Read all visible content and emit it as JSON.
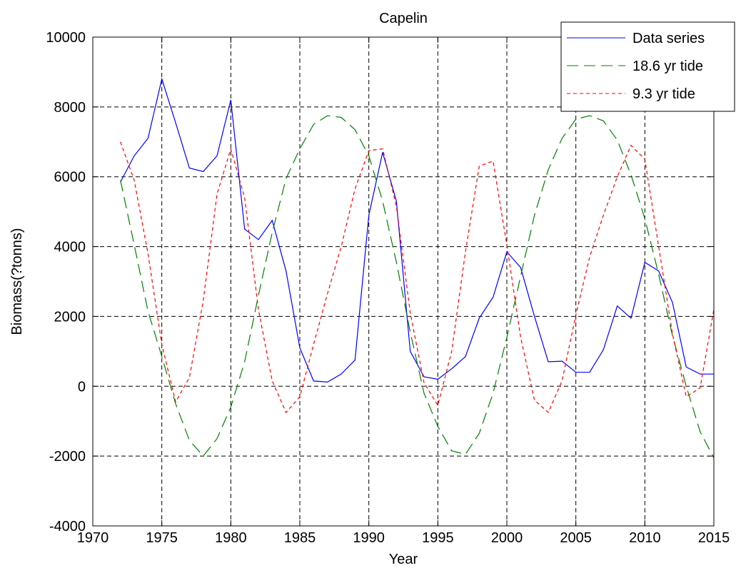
{
  "chart_data": {
    "type": "line",
    "title": "Capelin",
    "xlabel": "Year",
    "ylabel": "Biomass(?tonns)",
    "xlim": [
      1970,
      2015
    ],
    "ylim": [
      -4000,
      10000
    ],
    "xticks": [
      1970,
      1975,
      1980,
      1985,
      1990,
      1995,
      2000,
      2005,
      2010,
      2015
    ],
    "yticks": [
      -4000,
      -2000,
      0,
      2000,
      4000,
      6000,
      8000,
      10000
    ],
    "grid": true,
    "legend_position": "top-right",
    "series": [
      {
        "name": "Data series",
        "color": "#0000ff",
        "dash": "solid",
        "x": [
          1972,
          1973,
          1974,
          1975,
          1976,
          1977,
          1978,
          1979,
          1980,
          1981,
          1982,
          1983,
          1984,
          1985,
          1986,
          1987,
          1988,
          1989,
          1990,
          1991,
          1992,
          1993,
          1994,
          1995,
          1996,
          1997,
          1998,
          1999,
          2000,
          2001,
          2002,
          2003,
          2004,
          2005,
          2006,
          2007,
          2008,
          2009,
          2010,
          2011,
          2012,
          2013,
          2014,
          2015
        ],
        "y": [
          5850,
          6600,
          7100,
          8800,
          7550,
          6250,
          6150,
          6600,
          8200,
          4500,
          4200,
          4750,
          3300,
          1100,
          150,
          120,
          350,
          750,
          4900,
          6700,
          5300,
          1000,
          270,
          200,
          500,
          850,
          1950,
          2550,
          3850,
          3400,
          2000,
          700,
          720,
          400,
          400,
          1050,
          2300,
          1950,
          3550,
          3300,
          2400,
          550,
          350,
          350
        ]
      },
      {
        "name": "18.6 yr tide",
        "color": "#008000",
        "dash": "long",
        "x": [
          1972,
          1973,
          1974,
          1975,
          1976,
          1977,
          1978,
          1979,
          1980,
          1981,
          1982,
          1983,
          1984,
          1985,
          1986,
          1987,
          1988,
          1989,
          1990,
          1991,
          1992,
          1993,
          1994,
          1995,
          1996,
          1997,
          1998,
          1999,
          2000,
          2001,
          2002,
          2003,
          2004,
          2005,
          2006,
          2007,
          2008,
          2009,
          2010,
          2011,
          2012,
          2013,
          2014,
          2015
        ],
        "y": [
          5900,
          4050,
          2150,
          850,
          -500,
          -1550,
          -2000,
          -1500,
          -600,
          700,
          2600,
          4400,
          5950,
          6800,
          7500,
          7750,
          7700,
          7350,
          6600,
          5300,
          3550,
          1550,
          -200,
          -1150,
          -1850,
          -1950,
          -1350,
          -200,
          1400,
          3150,
          4900,
          6200,
          7100,
          7650,
          7750,
          7600,
          7050,
          6050,
          4800,
          3200,
          1450,
          0,
          -1300,
          -2050
        ]
      },
      {
        "name": "9.3 yr tide",
        "color": "#ff0000",
        "dash": "short",
        "x": [
          1972,
          1973,
          1974,
          1975,
          1976,
          1977,
          1978,
          1979,
          1980,
          1981,
          1982,
          1983,
          1984,
          1985,
          1986,
          1987,
          1988,
          1989,
          1990,
          1991,
          1992,
          1993,
          1994,
          1995,
          1996,
          1997,
          1998,
          1999,
          2000,
          2001,
          2002,
          2003,
          2004,
          2005,
          2006,
          2007,
          2008,
          2009,
          2010,
          2011,
          2012,
          2013,
          2014,
          2015
        ],
        "y": [
          7000,
          5900,
          3800,
          1200,
          -450,
          250,
          2450,
          5500,
          6800,
          5400,
          2200,
          150,
          -750,
          -300,
          1200,
          2650,
          4000,
          5650,
          6750,
          6800,
          5150,
          2100,
          100,
          -550,
          1000,
          3850,
          6300,
          6450,
          4050,
          1400,
          -400,
          -750,
          150,
          2050,
          3700,
          4900,
          6000,
          6900,
          6500,
          4000,
          1500,
          -300,
          -50,
          2200
        ]
      }
    ]
  }
}
